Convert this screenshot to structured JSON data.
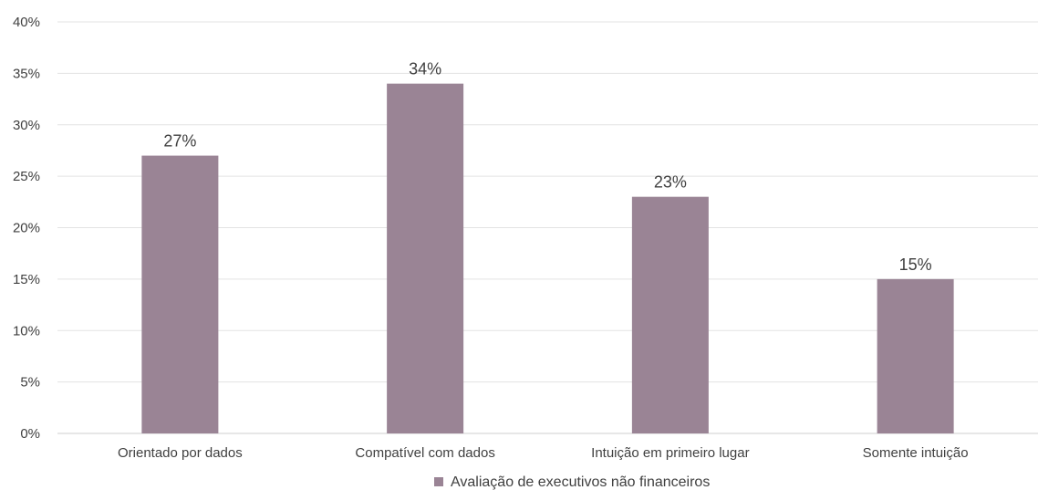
{
  "chart_data": {
    "type": "bar",
    "categories": [
      "Orientado por dados",
      "Compatível com dados",
      "Intuição em primeiro lugar",
      "Somente intuição"
    ],
    "series": [
      {
        "name": "Avaliação de executivos não financeiros",
        "values": [
          27,
          34,
          23,
          15
        ],
        "color": "#9a8495"
      }
    ],
    "data_labels": [
      "27%",
      "34%",
      "23%",
      "15%"
    ],
    "y_ticks": [
      "0%",
      "5%",
      "10%",
      "15%",
      "20%",
      "25%",
      "30%",
      "35%",
      "40%"
    ],
    "ylim": [
      0,
      40
    ],
    "title": "",
    "xlabel": "",
    "ylabel": "",
    "grid": true,
    "legend": {
      "position": "bottom",
      "label": "Avaliação de executivos não financeiros"
    }
  }
}
